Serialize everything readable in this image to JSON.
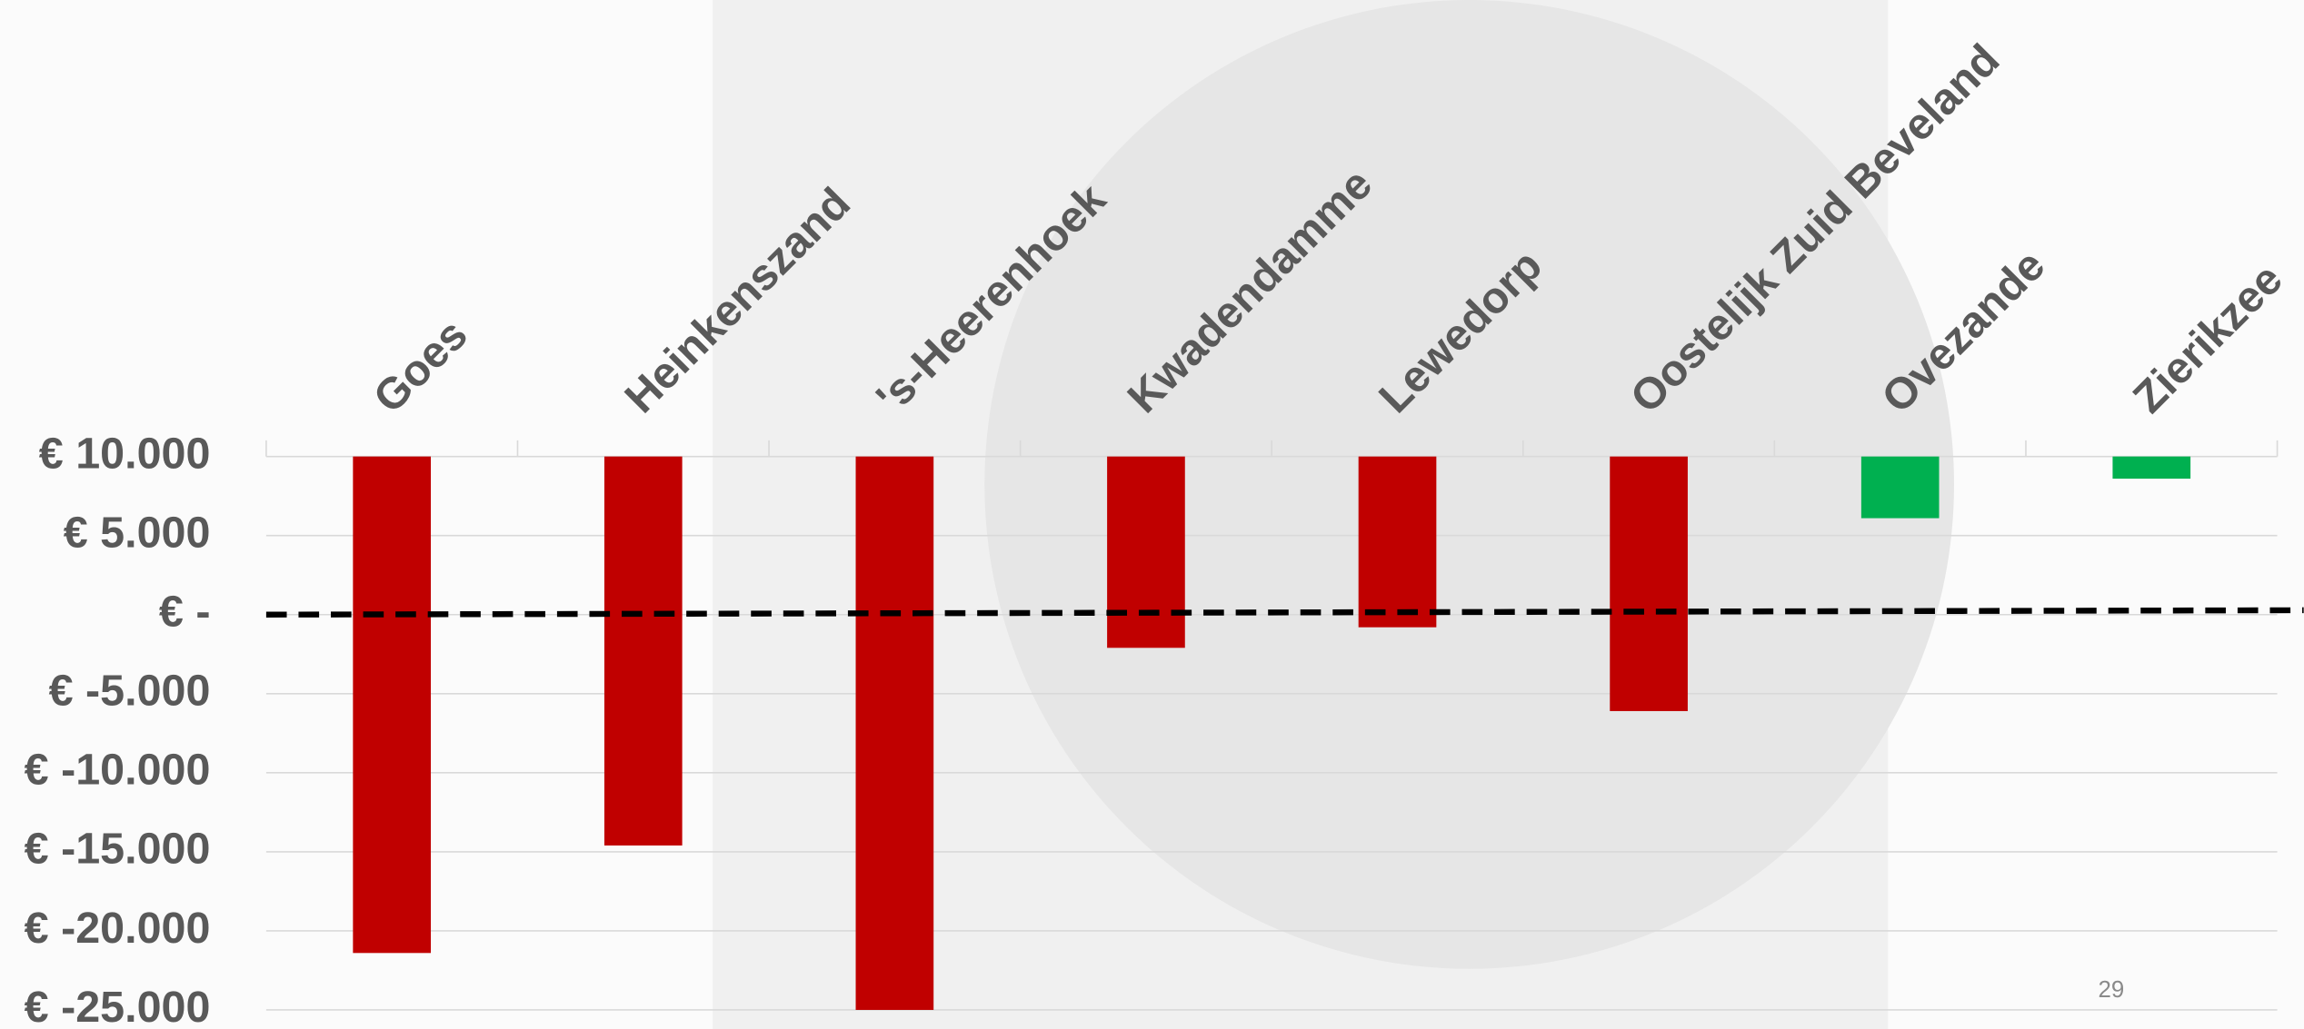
{
  "chart_data": {
    "type": "bar",
    "categories": [
      "Goes",
      "Heinkenszand",
      "'s-Heerenhoek",
      "Kwadendamme",
      "Lewedorp",
      "Oostelijk Zuid Beveland",
      "Ovezande",
      "Zierikzee"
    ],
    "values": [
      -21400,
      -14600,
      -25000,
      -2100,
      -800,
      -6100,
      6100,
      8600
    ],
    "colors": [
      "#c00000",
      "#c00000",
      "#c00000",
      "#c00000",
      "#c00000",
      "#c00000",
      "#00b050",
      "#00b050"
    ],
    "ylim": [
      -25000,
      10000
    ],
    "yticks": [
      {
        "value": 10000,
        "label": "€ 10.000"
      },
      {
        "value": 5000,
        "label": "€ 5.000"
      },
      {
        "value": 0,
        "label": "€ -"
      },
      {
        "value": -5000,
        "label": "€ -5.000"
      },
      {
        "value": -10000,
        "label": "€ -10.000"
      },
      {
        "value": -15000,
        "label": "€ -15.000"
      },
      {
        "value": -20000,
        "label": "€ -20.000"
      },
      {
        "value": -25000,
        "label": "€ -25.000"
      }
    ],
    "grid": true,
    "annotation": "29"
  }
}
